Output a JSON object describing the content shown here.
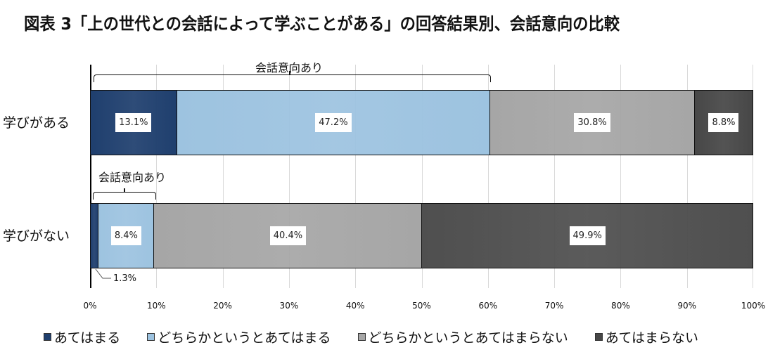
{
  "title": "図表 3「上の世代との会話によって学ぶことがある」の回答結果別、会話意向の比較",
  "chart_data": {
    "type": "bar",
    "orientation": "horizontal",
    "stacked": true,
    "percent_stacked": true,
    "title": "図表 3「上の世代との会話によって学ぶことがある」の回答結果別、会話意向の比較",
    "categories": [
      "学びがある",
      "学びがない"
    ],
    "series": [
      {
        "name": "あてはまる",
        "color": "#1f3f6e",
        "values": [
          13.1,
          1.3
        ]
      },
      {
        "name": "どちらかというとあてはまる",
        "color": "#9dc3e0",
        "values": [
          47.2,
          8.4
        ]
      },
      {
        "name": "どちらかというとあてはまらない",
        "color": "#a6a6a6",
        "values": [
          30.8,
          40.4
        ]
      },
      {
        "name": "あてはまらない",
        "color": "#4a4a4a",
        "values": [
          8.8,
          49.9
        ]
      }
    ],
    "data_labels": [
      [
        "13.1%",
        "47.2%",
        "30.8%",
        "8.8%"
      ],
      [
        "1.3%",
        "8.4%",
        "40.4%",
        "49.9%"
      ]
    ],
    "xlabel": "",
    "ylabel": "",
    "xlim": [
      0,
      100
    ],
    "x_ticks": [
      "0%",
      "10%",
      "20%",
      "30%",
      "40%",
      "50%",
      "60%",
      "70%",
      "80%",
      "90%",
      "100%"
    ],
    "grid": true,
    "legend_position": "bottom",
    "annotations": [
      {
        "text": "会話意向あり",
        "category": "学びがある",
        "spans": "0%–60.3%"
      },
      {
        "text": "会話意向あり",
        "category": "学びがない",
        "spans": "0%–9.7%"
      },
      {
        "text": "1.3%",
        "category": "学びがない",
        "type": "callout"
      }
    ]
  },
  "rows": [
    {
      "label": "学びがある",
      "segments": [
        {
          "value": 13.1,
          "text": "13.1%",
          "color": "#1f3f6e"
        },
        {
          "value": 47.2,
          "text": "47.2%",
          "color": "#9dc3e0"
        },
        {
          "value": 30.8,
          "text": "30.8%",
          "color": "#a6a6a6"
        },
        {
          "value": 8.8,
          "text": "8.8%",
          "color": "#474747"
        }
      ]
    },
    {
      "label": "学びがない",
      "segments": [
        {
          "value": 1.3,
          "text": "",
          "color": "#1f3f6e"
        },
        {
          "value": 8.4,
          "text": "8.4%",
          "color": "#9dc3e0"
        },
        {
          "value": 40.4,
          "text": "40.4%",
          "color": "#a6a6a6"
        },
        {
          "value": 49.9,
          "text": "49.9%",
          "color": "#4f4f4f"
        }
      ]
    }
  ],
  "annotations": {
    "bracket1_label": "会話意向あり",
    "bracket2_label": "会話意向あり",
    "callout_label": "1.3%"
  },
  "x_ticks": [
    "0%",
    "10%",
    "20%",
    "30%",
    "40%",
    "50%",
    "60%",
    "70%",
    "80%",
    "90%",
    "100%"
  ],
  "legend": [
    {
      "label": "あてはまる",
      "color": "#1f3f6e"
    },
    {
      "label": "どちらかというとあてはまる",
      "color": "#9dc3e0"
    },
    {
      "label": "どちらかというとあてはまらない",
      "color": "#a6a6a6"
    },
    {
      "label": "あてはまらない",
      "color": "#474747"
    }
  ]
}
